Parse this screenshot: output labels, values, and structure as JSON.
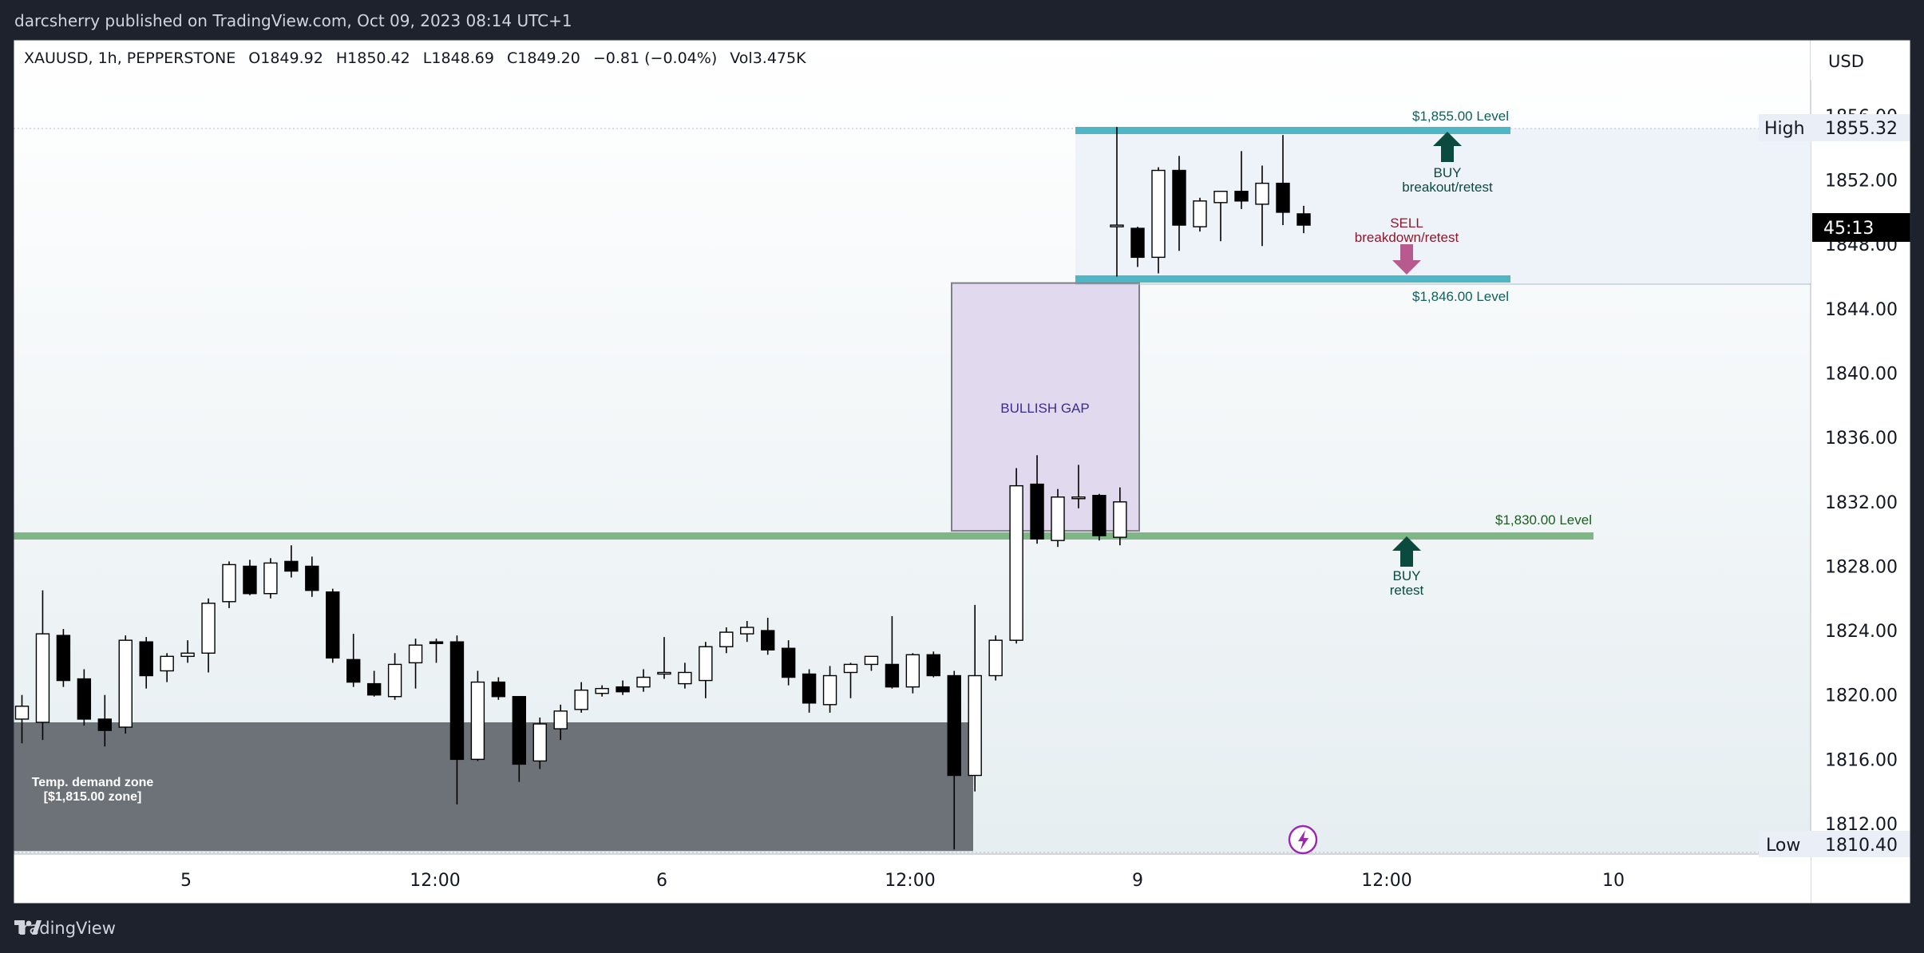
{
  "header": {
    "published": "darcsherry published on TradingView.com, Oct 09, 2023 08:14 UTC+1"
  },
  "legend": {
    "symbol": "XAUUSD, 1h, PEPPERSTONE",
    "open": "O1849.92",
    "high": "H1850.42",
    "low": "L1848.69",
    "close": "C1849.20",
    "change": "−0.81 (−0.04%)",
    "volume": "Vol3.475K"
  },
  "price_axis": {
    "currency": "USD",
    "countdown": "45:13",
    "high_label": "High",
    "high_value": "1855.32",
    "low_label": "Low",
    "low_value": "1810.40"
  },
  "footer": {
    "brand": "TradingView"
  },
  "colors": {
    "background": "#ffffff",
    "frame": "#1e222d",
    "level_teal": "#4fb6c6",
    "level_green": "#7fb685",
    "demand_zone": "#6d7178",
    "gap_fill": "#e1d9ee",
    "buy_arrow": "#0b4a3f",
    "sell_arrow": "#b75a8e"
  },
  "chart_data": {
    "type": "candlestick",
    "symbol": "XAUUSD",
    "timeframe": "1h",
    "ylim": [
      1810,
      1857
    ],
    "y_ticks": [
      1812,
      1816,
      1820,
      1824,
      1828,
      1832,
      1836,
      1840,
      1844,
      1848,
      1852,
      1856
    ],
    "y_tick_labels": [
      "1812.00",
      "1816.00",
      "1820.00",
      "1824.00",
      "1828.00",
      "1832.00",
      "1836.00",
      "1840.00",
      "1844.00",
      "1848.00",
      "1852.00",
      "1856.00"
    ],
    "x_labels": [
      {
        "label": "5",
        "bar": 8
      },
      {
        "label": "12:00",
        "bar": 20
      },
      {
        "label": "6",
        "bar": 31
      },
      {
        "label": "12:00",
        "bar": 43
      },
      {
        "label": "9",
        "bar": 54
      },
      {
        "label": "12:00",
        "bar": 66
      },
      {
        "label": "10",
        "bar": 78
      }
    ],
    "candles": [
      {
        "o": 1818.5,
        "h": 1820.0,
        "l": 1817.0,
        "c": 1819.3
      },
      {
        "o": 1818.3,
        "h": 1826.5,
        "l": 1817.2,
        "c": 1823.8
      },
      {
        "o": 1823.7,
        "h": 1824.1,
        "l": 1820.5,
        "c": 1820.9
      },
      {
        "o": 1821.0,
        "h": 1821.6,
        "l": 1818.1,
        "c": 1818.5
      },
      {
        "o": 1818.5,
        "h": 1820.0,
        "l": 1816.8,
        "c": 1817.8
      },
      {
        "o": 1818.0,
        "h": 1823.7,
        "l": 1817.6,
        "c": 1823.4
      },
      {
        "o": 1823.3,
        "h": 1823.6,
        "l": 1820.4,
        "c": 1821.2
      },
      {
        "o": 1821.5,
        "h": 1822.6,
        "l": 1820.8,
        "c": 1822.4
      },
      {
        "o": 1822.4,
        "h": 1823.4,
        "l": 1822.0,
        "c": 1822.6
      },
      {
        "o": 1822.6,
        "h": 1826.0,
        "l": 1821.4,
        "c": 1825.7
      },
      {
        "o": 1825.8,
        "h": 1828.3,
        "l": 1825.4,
        "c": 1828.1
      },
      {
        "o": 1828.0,
        "h": 1828.4,
        "l": 1826.2,
        "c": 1826.3
      },
      {
        "o": 1826.3,
        "h": 1828.5,
        "l": 1826.0,
        "c": 1828.2
      },
      {
        "o": 1828.3,
        "h": 1829.3,
        "l": 1827.3,
        "c": 1827.7
      },
      {
        "o": 1828.0,
        "h": 1828.6,
        "l": 1826.1,
        "c": 1826.5
      },
      {
        "o": 1826.4,
        "h": 1826.6,
        "l": 1822.0,
        "c": 1822.3
      },
      {
        "o": 1822.2,
        "h": 1823.8,
        "l": 1820.5,
        "c": 1820.8
      },
      {
        "o": 1820.7,
        "h": 1821.5,
        "l": 1819.9,
        "c": 1820.0
      },
      {
        "o": 1819.9,
        "h": 1822.6,
        "l": 1819.7,
        "c": 1821.9
      },
      {
        "o": 1822.0,
        "h": 1823.5,
        "l": 1820.4,
        "c": 1823.1
      },
      {
        "o": 1823.3,
        "h": 1823.5,
        "l": 1822.0,
        "c": 1823.2
      },
      {
        "o": 1823.3,
        "h": 1823.7,
        "l": 1813.2,
        "c": 1816.0
      },
      {
        "o": 1816.0,
        "h": 1821.5,
        "l": 1815.9,
        "c": 1820.8
      },
      {
        "o": 1820.8,
        "h": 1821.1,
        "l": 1819.7,
        "c": 1819.9
      },
      {
        "o": 1819.9,
        "h": 1819.9,
        "l": 1814.6,
        "c": 1815.7
      },
      {
        "o": 1815.9,
        "h": 1818.6,
        "l": 1815.4,
        "c": 1818.2
      },
      {
        "o": 1817.9,
        "h": 1819.4,
        "l": 1817.2,
        "c": 1819.0
      },
      {
        "o": 1819.1,
        "h": 1820.8,
        "l": 1818.9,
        "c": 1820.3
      },
      {
        "o": 1820.1,
        "h": 1820.6,
        "l": 1819.9,
        "c": 1820.4
      },
      {
        "o": 1820.5,
        "h": 1820.9,
        "l": 1820.0,
        "c": 1820.2
      },
      {
        "o": 1820.5,
        "h": 1821.6,
        "l": 1820.2,
        "c": 1821.1
      },
      {
        "o": 1821.3,
        "h": 1823.6,
        "l": 1821.0,
        "c": 1821.4
      },
      {
        "o": 1820.7,
        "h": 1822.0,
        "l": 1820.4,
        "c": 1821.4
      },
      {
        "o": 1820.9,
        "h": 1823.3,
        "l": 1819.8,
        "c": 1823.0
      },
      {
        "o": 1823.0,
        "h": 1824.2,
        "l": 1822.6,
        "c": 1823.9
      },
      {
        "o": 1823.8,
        "h": 1824.6,
        "l": 1823.3,
        "c": 1824.2
      },
      {
        "o": 1824.0,
        "h": 1824.8,
        "l": 1822.5,
        "c": 1822.8
      },
      {
        "o": 1822.9,
        "h": 1823.4,
        "l": 1820.6,
        "c": 1821.1
      },
      {
        "o": 1821.3,
        "h": 1821.6,
        "l": 1818.9,
        "c": 1819.5
      },
      {
        "o": 1819.4,
        "h": 1821.8,
        "l": 1818.9,
        "c": 1821.2
      },
      {
        "o": 1821.4,
        "h": 1822.0,
        "l": 1819.8,
        "c": 1821.9
      },
      {
        "o": 1821.9,
        "h": 1822.4,
        "l": 1821.5,
        "c": 1822.4
      },
      {
        "o": 1821.9,
        "h": 1824.9,
        "l": 1820.4,
        "c": 1820.5
      },
      {
        "o": 1820.5,
        "h": 1822.6,
        "l": 1820.1,
        "c": 1822.5
      },
      {
        "o": 1822.5,
        "h": 1822.7,
        "l": 1821.1,
        "c": 1821.2
      },
      {
        "o": 1821.2,
        "h": 1821.5,
        "l": 1810.4,
        "c": 1815.0
      },
      {
        "o": 1815.0,
        "h": 1825.6,
        "l": 1814.0,
        "c": 1821.2
      },
      {
        "o": 1821.2,
        "h": 1823.7,
        "l": 1820.9,
        "c": 1823.4
      },
      {
        "o": 1823.4,
        "h": 1834.1,
        "l": 1823.2,
        "c": 1833.0
      },
      {
        "o": 1833.1,
        "h": 1834.9,
        "l": 1829.4,
        "c": 1829.7
      },
      {
        "o": 1829.6,
        "h": 1832.8,
        "l": 1829.2,
        "c": 1832.3
      },
      {
        "o": 1832.2,
        "h": 1834.3,
        "l": 1831.6,
        "c": 1832.3
      },
      {
        "o": 1832.4,
        "h": 1832.5,
        "l": 1829.6,
        "c": 1829.9
      },
      {
        "o": 1829.8,
        "h": 1832.9,
        "l": 1829.3,
        "c": 1832.0
      },
      {
        "o": 1849.1,
        "h": 1855.3,
        "l": 1846.0,
        "c": 1849.2
      },
      {
        "o": 1849.0,
        "h": 1849.1,
        "l": 1846.6,
        "c": 1847.2
      },
      {
        "o": 1847.2,
        "h": 1852.8,
        "l": 1846.2,
        "c": 1852.6
      },
      {
        "o": 1852.6,
        "h": 1853.5,
        "l": 1847.6,
        "c": 1849.2
      },
      {
        "o": 1849.1,
        "h": 1850.9,
        "l": 1848.8,
        "c": 1850.7
      },
      {
        "o": 1850.6,
        "h": 1851.3,
        "l": 1848.2,
        "c": 1851.3
      },
      {
        "o": 1851.3,
        "h": 1853.8,
        "l": 1850.2,
        "c": 1850.7
      },
      {
        "o": 1850.5,
        "h": 1852.9,
        "l": 1847.9,
        "c": 1851.8
      },
      {
        "o": 1851.8,
        "h": 1854.8,
        "l": 1849.2,
        "c": 1850.0
      },
      {
        "o": 1849.9,
        "h": 1850.4,
        "l": 1848.7,
        "c": 1849.2
      }
    ],
    "levels": [
      {
        "label": "$1,855.00 Level",
        "price": 1855.0
      },
      {
        "label": "$1,846.00 Level",
        "price": 1846.0
      },
      {
        "label": "$1,830.00 Level",
        "price": 1830.0
      }
    ],
    "zones": [
      {
        "label": "BULLISH GAP",
        "from": 1830.2,
        "to": 1845.6
      },
      {
        "label": "Temp. demand zone",
        "sublabel": "[$1,815.00 zone]",
        "from": 1810.4,
        "to": 1818.3
      }
    ],
    "annotations": [
      {
        "type": "buy",
        "line1": "BUY",
        "line2": "breakout/retest"
      },
      {
        "type": "sell",
        "line1": "SELL",
        "line2": "breakdown/retest"
      },
      {
        "type": "buy",
        "line1": "BUY",
        "line2": "retest"
      }
    ]
  }
}
